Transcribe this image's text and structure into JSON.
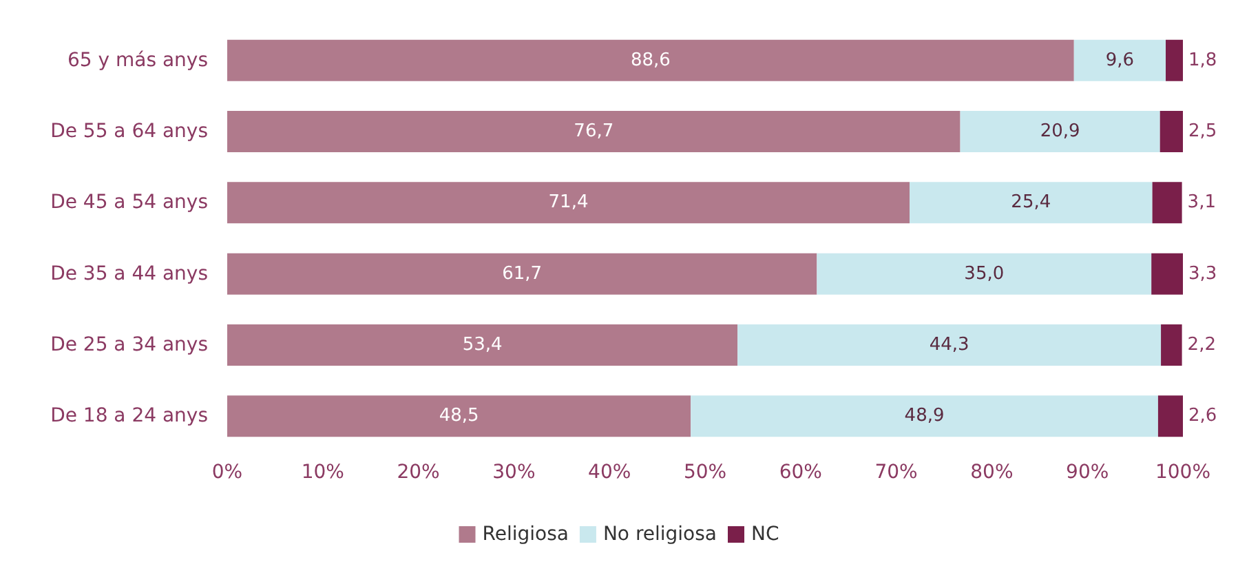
{
  "chart_data": {
    "type": "bar",
    "orientation": "horizontal",
    "stacked": true,
    "categories": [
      "65 y más anys",
      "De 55 a 64 anys",
      "De 45 a 54 anys",
      "De 35 a 44 anys",
      "De 25 a 34 anys",
      "De 18 a 24 anys"
    ],
    "series": [
      {
        "name": "Religiosa",
        "color": "#b07a8c",
        "values": [
          88.6,
          76.7,
          71.4,
          61.7,
          53.4,
          48.5
        ],
        "value_labels": [
          "88,6",
          "76,7",
          "71,4",
          "61,7",
          "53,4",
          "48,5"
        ]
      },
      {
        "name": "No religiosa",
        "color": "#c9e8ee",
        "values": [
          9.6,
          20.9,
          25.4,
          35.0,
          44.3,
          48.9
        ],
        "value_labels": [
          "9,6",
          "20,9",
          "25,4",
          "35,0",
          "44,3",
          "48,9"
        ]
      },
      {
        "name": "NC",
        "color": "#7a1f4a",
        "values": [
          1.8,
          2.5,
          3.1,
          3.3,
          2.2,
          2.6
        ],
        "value_labels": [
          "1,8",
          "2,5",
          "3,1",
          "3,3",
          "2,2",
          "2,6"
        ]
      }
    ],
    "xlim": [
      0,
      100
    ],
    "xticks": [
      {
        "value": 0,
        "label": "0%"
      },
      {
        "value": 10,
        "label": "10%"
      },
      {
        "value": 20,
        "label": "20%"
      },
      {
        "value": 30,
        "label": "30%"
      },
      {
        "value": 40,
        "label": "40%"
      },
      {
        "value": 50,
        "label": "50%"
      },
      {
        "value": 60,
        "label": "60%"
      },
      {
        "value": 70,
        "label": "70%"
      },
      {
        "value": 80,
        "label": "80%"
      },
      {
        "value": 90,
        "label": "90%"
      },
      {
        "value": 100,
        "label": "100%"
      }
    ],
    "grid": false,
    "legend": "bottom"
  }
}
